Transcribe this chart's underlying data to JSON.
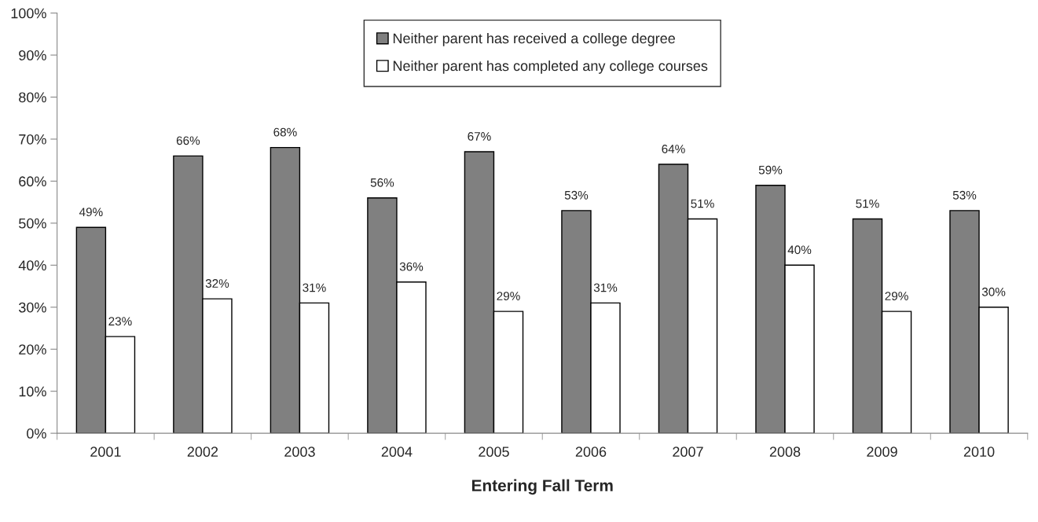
{
  "chart_data": {
    "type": "bar",
    "xlabel": "Entering Fall Term",
    "categories": [
      "2001",
      "2002",
      "2003",
      "2004",
      "2005",
      "2006",
      "2007",
      "2008",
      "2009",
      "2010"
    ],
    "series": [
      {
        "name": "Neither parent has received a college degree",
        "color": "#808080",
        "values": [
          49,
          66,
          68,
          56,
          67,
          53,
          64,
          59,
          51,
          53
        ],
        "value_labels": [
          "49%",
          "66%",
          "68%",
          "56%",
          "67%",
          "53%",
          "64%",
          "59%",
          "51%",
          "53%"
        ]
      },
      {
        "name": "Neither parent has completed any college courses",
        "color": "#ffffff",
        "values": [
          23,
          32,
          31,
          36,
          29,
          31,
          51,
          40,
          29,
          30
        ],
        "value_labels": [
          "23%",
          "32%",
          "31%",
          "36%",
          "29%",
          "31%",
          "51%",
          "40%",
          "29%",
          "30%"
        ]
      }
    ],
    "ylim": [
      0,
      100
    ],
    "yticks": [
      {
        "value": 0,
        "label": "0%"
      },
      {
        "value": 10,
        "label": "10%"
      },
      {
        "value": 20,
        "label": "20%"
      },
      {
        "value": 30,
        "label": "30%"
      },
      {
        "value": 40,
        "label": "40%"
      },
      {
        "value": 50,
        "label": "50%"
      },
      {
        "value": 60,
        "label": "60%"
      },
      {
        "value": 70,
        "label": "70%"
      },
      {
        "value": 80,
        "label": "80%"
      },
      {
        "value": 90,
        "label": "90%"
      },
      {
        "value": 100,
        "label": "100%"
      }
    ],
    "grid": false,
    "legend": "top"
  }
}
